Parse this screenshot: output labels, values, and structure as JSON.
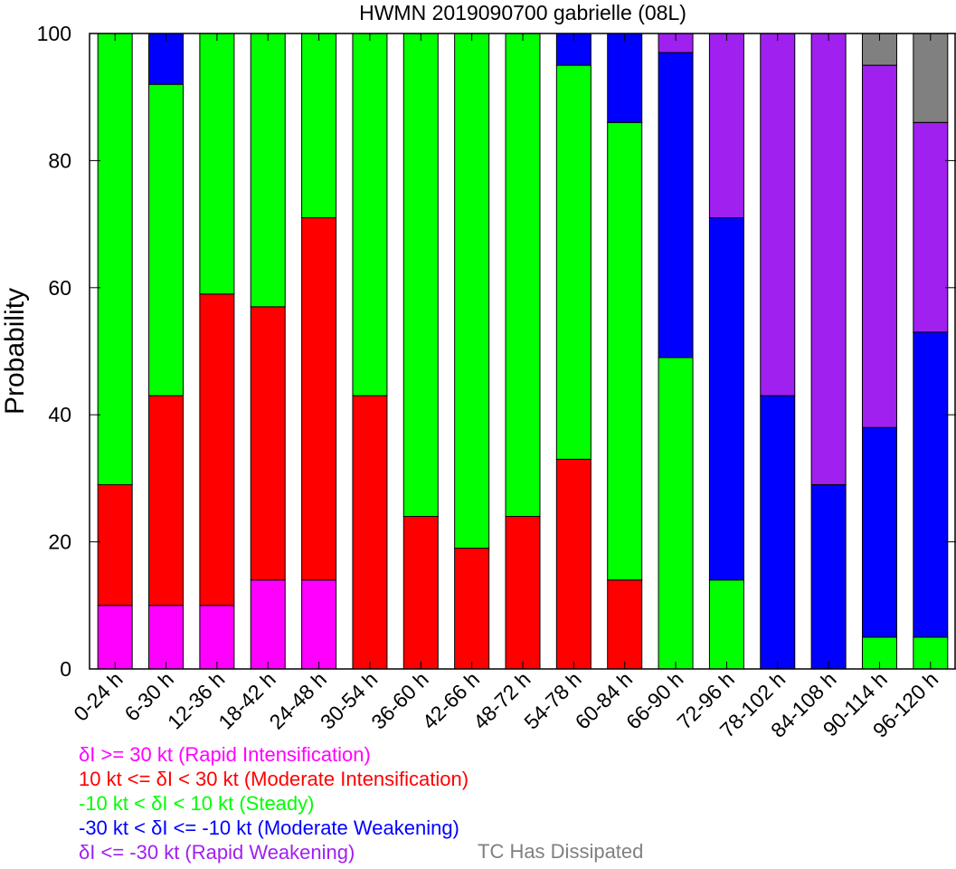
{
  "chart_data": {
    "type": "bar",
    "stacked": true,
    "title": "HWMN 2019090700 gabrielle (08L)",
    "xlabel": "",
    "ylabel": "Probability",
    "ylim": [
      0,
      100
    ],
    "yticks": [
      "0",
      "20",
      "40",
      "60",
      "80",
      "100"
    ],
    "grid": false,
    "categories": [
      "0-24 h",
      "6-30 h",
      "12-36 h",
      "18-42 h",
      "24-48 h",
      "30-54 h",
      "36-60 h",
      "42-66 h",
      "48-72 h",
      "54-78 h",
      "60-84 h",
      "66-90 h",
      "72-96 h",
      "78-102 h",
      "84-108 h",
      "90-114 h",
      "96-120 h"
    ],
    "series": [
      {
        "name": "δI >= 30 kt (Rapid Intensification)",
        "color": "#ff00ff",
        "values": [
          10,
          10,
          10,
          14,
          14,
          0,
          0,
          0,
          0,
          0,
          0,
          0,
          0,
          0,
          0,
          0,
          0
        ]
      },
      {
        "name": "10 kt <= δI < 30 kt (Moderate Intensification)",
        "color": "#ff0000",
        "values": [
          19,
          33,
          49,
          43,
          57,
          43,
          24,
          19,
          24,
          33,
          14,
          0,
          0,
          0,
          0,
          0,
          0
        ]
      },
      {
        "name": "-10 kt < δI < 10 kt (Steady)",
        "color": "#00ff00",
        "values": [
          71,
          49,
          41,
          43,
          29,
          57,
          76,
          81,
          76,
          62,
          72,
          49,
          14,
          0,
          0,
          5,
          5
        ]
      },
      {
        "name": "-30 kt < δI <= -10 kt (Moderate Weakening)",
        "color": "#0000ff",
        "values": [
          0,
          8,
          0,
          0,
          0,
          0,
          0,
          0,
          0,
          5,
          14,
          48,
          57,
          43,
          29,
          33,
          48
        ]
      },
      {
        "name": "δI <= -30 kt (Rapid Weakening)",
        "color": "#a020f0",
        "values": [
          0,
          0,
          0,
          0,
          0,
          0,
          0,
          0,
          0,
          0,
          0,
          3,
          29,
          57,
          71,
          57,
          33
        ]
      },
      {
        "name": "TC Has Dissipated",
        "color": "#808080",
        "values": [
          0,
          0,
          0,
          0,
          0,
          0,
          0,
          0,
          0,
          0,
          0,
          0,
          0,
          0,
          0,
          5,
          14
        ]
      }
    ],
    "legend_placement": "bottom"
  }
}
